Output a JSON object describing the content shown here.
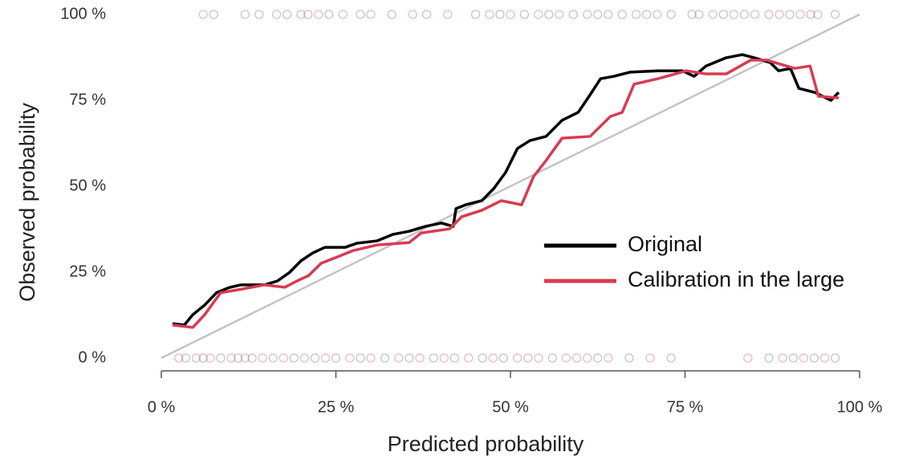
{
  "chart_data": {
    "type": "line",
    "x_label": "Predicted probability",
    "y_label": "Observed probability",
    "xlim": [
      0,
      100
    ],
    "ylim": [
      0,
      100
    ],
    "xticks": [
      {
        "value": 0,
        "label": "0 %"
      },
      {
        "value": 25,
        "label": "25 %"
      },
      {
        "value": 50,
        "label": "50 %"
      },
      {
        "value": 75,
        "label": "75 %"
      },
      {
        "value": 100,
        "label": "100 %"
      }
    ],
    "yticks": [
      {
        "value": 0,
        "label": "0 %"
      },
      {
        "value": 25,
        "label": "25 %"
      },
      {
        "value": 50,
        "label": "50 %"
      },
      {
        "value": 75,
        "label": "75 %"
      },
      {
        "value": 100,
        "label": "100 %"
      }
    ],
    "diagonal": true,
    "legend": "right",
    "series": [
      {
        "name": "Original",
        "color": "#000000",
        "x": [
          1.6,
          3.3,
          4.5,
          6.2,
          7.9,
          9.7,
          11.4,
          14.8,
          16.6,
          18.3,
          20,
          21.7,
          23.4,
          26.3,
          28,
          30.9,
          33.2,
          35.5,
          37.8,
          40.1,
          41.8,
          42.2,
          43.6,
          45.9,
          47.6,
          49.3,
          51,
          52.8,
          55.1,
          57.4,
          59.7,
          61.4,
          62.9,
          64.8,
          67.1,
          71.1,
          74.6,
          76.3,
          78,
          80.9,
          83.2,
          84.9,
          87.2,
          88.4,
          90.1,
          91.3,
          93.6,
          95.9,
          97
        ],
        "values": [
          10,
          9.6,
          12.6,
          15.4,
          19,
          20.5,
          21.3,
          21.3,
          22.4,
          24.8,
          28.3,
          30.6,
          32.2,
          32.2,
          33.4,
          34.1,
          36,
          36.9,
          38.3,
          39.3,
          38.3,
          43.5,
          44.6,
          45.8,
          49.3,
          54,
          61,
          63.3,
          64.5,
          69.2,
          71.5,
          76.6,
          81.3,
          82,
          83.2,
          83.6,
          83.6,
          82,
          85,
          87.4,
          88.3,
          87.4,
          86,
          83.6,
          84.3,
          78.5,
          77.3,
          75,
          77.3
        ]
      },
      {
        "name": "Calibration in the large",
        "color": "#d93a52",
        "x": [
          1.6,
          4.5,
          6.2,
          8.5,
          11.4,
          14.8,
          17.7,
          19.4,
          21.1,
          22.9,
          25.2,
          27.5,
          30.9,
          35.5,
          37.2,
          41.3,
          43,
          45.9,
          48.7,
          51.6,
          53.3,
          55.1,
          57.4,
          61.4,
          64.3,
          66,
          67.7,
          71.1,
          75.2,
          78,
          80.9,
          84.4,
          86.7,
          90.7,
          92.9,
          94.1,
          97
        ],
        "values": [
          9.6,
          8.9,
          12.6,
          19,
          20,
          21.3,
          20.6,
          22.4,
          24,
          27.6,
          29.4,
          31.3,
          32.9,
          33.6,
          36.4,
          37.6,
          41.1,
          43,
          45.8,
          44.6,
          52.8,
          57.5,
          64,
          64.5,
          70.3,
          71.5,
          79.7,
          81.3,
          83.6,
          82.7,
          82.7,
          86.7,
          86.7,
          84.3,
          85,
          76.2,
          75.7
        ]
      }
    ],
    "rug": [
      {
        "y": 100,
        "x": [
          6,
          7.5,
          12,
          14,
          16.5,
          18,
          20,
          21,
          22.5,
          24,
          26,
          28.5,
          30,
          33,
          36,
          38,
          41,
          45,
          47,
          48.5,
          50,
          52,
          54,
          55.5,
          57,
          59,
          61,
          62.5,
          64,
          66,
          68,
          69.5,
          71,
          73,
          76,
          77,
          79,
          80.5,
          82,
          83.5,
          85,
          87,
          88.5,
          90,
          91.5,
          93,
          94,
          96.5
        ]
      },
      {
        "y": 0,
        "x": [
          2.5,
          3.5,
          5,
          6,
          7,
          8.5,
          10,
          11,
          12,
          13,
          14.5,
          16,
          17.5,
          19,
          20.5,
          22,
          23.5,
          25,
          27,
          28.5,
          30,
          32,
          34,
          35.5,
          37,
          39,
          40.5,
          42,
          44,
          46,
          47.5,
          49,
          51,
          52.5,
          54,
          56,
          58,
          59.5,
          61,
          62.5,
          64,
          67,
          70,
          73,
          84,
          87,
          89,
          90.5,
          92,
          93.5,
          95,
          96.5
        ]
      }
    ],
    "rug_colors": [
      "#c83a5a",
      "#555555"
    ]
  }
}
